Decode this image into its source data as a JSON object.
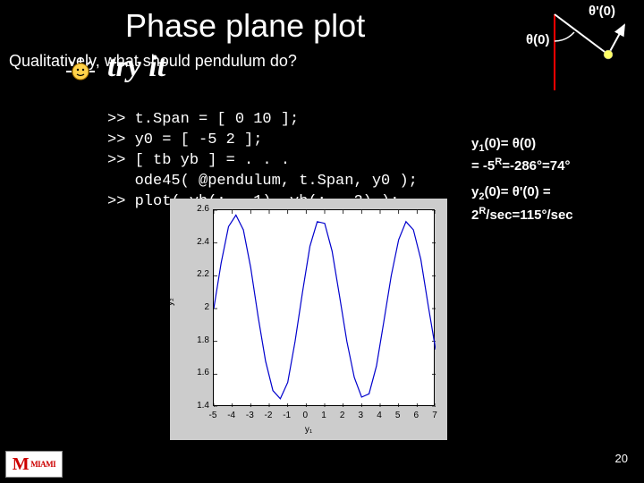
{
  "title": "Phase plane plot",
  "subtitle": "Qualitatively, what should pendulum do?",
  "tryit": "try it",
  "code": {
    "l1": ">> t.Span = [ 0 10 ];",
    "l2": ">> y0 = [ -5 2 ];",
    "l3": ">> [ tb yb ] = . . .",
    "l4": "   ode45( @pendulum, t.Span, y0 );",
    "l5": ">> plot( yb(: , 1), yb(: , 2) );"
  },
  "diagram": {
    "theta0": "θ(0)",
    "thetaprime0": "θ'(0)",
    "pivot_x": 80,
    "pivot_y": 10,
    "rest_x": 80,
    "rest_y": 95,
    "bob_x": 140,
    "bob_y": 55,
    "tan_x": 158,
    "tan_y": 22,
    "stroke_red": "#ff0000",
    "stroke_white": "#ffffff",
    "bob_fill": "#ffff66"
  },
  "side": {
    "y10_label": "y",
    "y10_sub": "1",
    "y10_after": "(0)= θ(0)",
    "y10_val": "= -5",
    "y10_supR": "R",
    "y10_rest": "=-286°=74°",
    "y20_label": "y",
    "y20_sub": "2",
    "y20_after": "(0)= θ'(0) =",
    "y20_val": "2",
    "y20_supR": "R",
    "y20_rest": "/sec=115°/sec"
  },
  "plot": {
    "type": "line",
    "background_color": "#cccccc",
    "axes_background": "#ffffff",
    "line_color": "#0000cd",
    "line_width": 1.2,
    "xlim": [
      -5,
      7
    ],
    "ylim": [
      1.4,
      2.6
    ],
    "xticks": [
      -5,
      -4,
      -3,
      -2,
      -1,
      0,
      1,
      2,
      3,
      4,
      5,
      6,
      7
    ],
    "yticks": [
      1.4,
      1.6,
      1.8,
      2,
      2.2,
      2.4,
      2.6
    ],
    "xlabel": "y₁",
    "ylabel": "y₂",
    "series_x": [
      -5,
      -4.6,
      -4.2,
      -3.8,
      -3.4,
      -3,
      -2.6,
      -2.2,
      -1.8,
      -1.4,
      -1,
      -0.6,
      -0.2,
      0.2,
      0.6,
      1,
      1.4,
      1.8,
      2.2,
      2.6,
      3,
      3.4,
      3.8,
      4.2,
      4.6,
      5,
      5.4,
      5.8,
      6.2,
      6.6,
      7
    ],
    "series_y": [
      2.0,
      2.28,
      2.5,
      2.57,
      2.48,
      2.25,
      1.95,
      1.68,
      1.5,
      1.45,
      1.55,
      1.8,
      2.1,
      2.38,
      2.53,
      2.52,
      2.35,
      2.08,
      1.8,
      1.58,
      1.46,
      1.48,
      1.65,
      1.92,
      2.2,
      2.42,
      2.53,
      2.48,
      2.3,
      2.02,
      1.75
    ]
  },
  "slideNumber": "20",
  "logo_text": "MIAMI"
}
